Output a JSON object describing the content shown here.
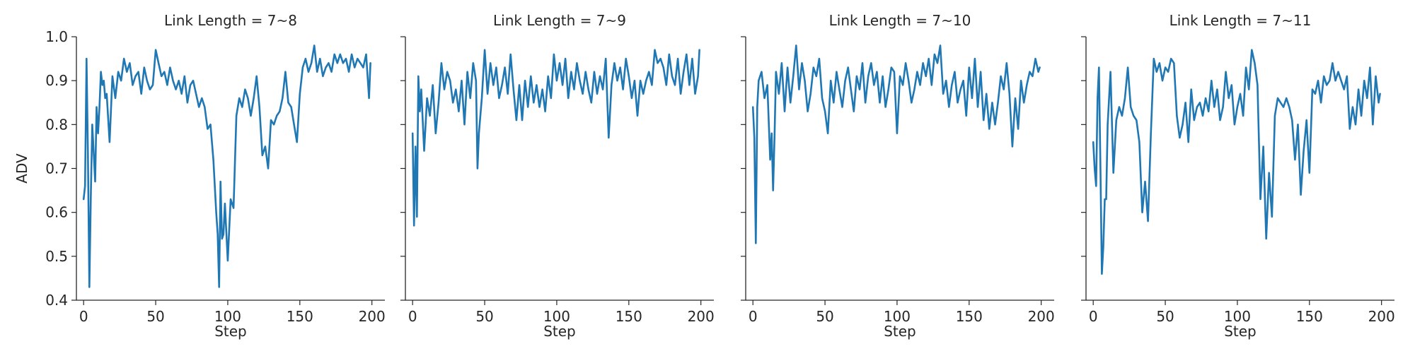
{
  "chart_data": [
    {
      "type": "line",
      "title": "Link Length = 7~8",
      "xlabel": "Step",
      "ylabel": "ADV",
      "xlim": [
        -5,
        209
      ],
      "ylim": [
        0.4,
        1.0
      ],
      "xticks": [
        "0",
        "50",
        "100",
        "150",
        "200"
      ],
      "yticks": [
        "0.4",
        "0.5",
        "0.6",
        "0.7",
        "0.8",
        "0.9",
        "1.0"
      ],
      "grid": false,
      "series_color": "#1f77b4",
      "series": [
        {
          "x": [
            0,
            1,
            2,
            3,
            4,
            5,
            6,
            8,
            9,
            10,
            11,
            12,
            13,
            14,
            15,
            16,
            18,
            20,
            22,
            24,
            26,
            28,
            30,
            32,
            34,
            36,
            38,
            40,
            42,
            44,
            46,
            48,
            50,
            52,
            54,
            56,
            58,
            60,
            62,
            64,
            66,
            68,
            70,
            72,
            74,
            76,
            78,
            80,
            82,
            84,
            86,
            88,
            90,
            92,
            93,
            94,
            95,
            96,
            97,
            98,
            100,
            102,
            104,
            106,
            108,
            110,
            112,
            114,
            116,
            118,
            120,
            122,
            124,
            126,
            128,
            130,
            132,
            134,
            136,
            138,
            140,
            142,
            144,
            146,
            148,
            150,
            152,
            154,
            156,
            158,
            160,
            162,
            164,
            166,
            168,
            170,
            172,
            174,
            176,
            178,
            180,
            182,
            184,
            186,
            188,
            190,
            192,
            194,
            196,
            198,
            199
          ],
          "y": [
            0.63,
            0.66,
            0.95,
            0.73,
            0.43,
            0.64,
            0.8,
            0.67,
            0.84,
            0.78,
            0.84,
            0.92,
            0.89,
            0.9,
            0.86,
            0.87,
            0.76,
            0.91,
            0.86,
            0.92,
            0.9,
            0.95,
            0.92,
            0.94,
            0.89,
            0.91,
            0.92,
            0.87,
            0.93,
            0.9,
            0.88,
            0.89,
            0.97,
            0.94,
            0.91,
            0.92,
            0.89,
            0.93,
            0.9,
            0.88,
            0.9,
            0.87,
            0.91,
            0.85,
            0.89,
            0.9,
            0.87,
            0.84,
            0.86,
            0.84,
            0.79,
            0.8,
            0.72,
            0.6,
            0.55,
            0.43,
            0.67,
            0.54,
            0.55,
            0.62,
            0.49,
            0.63,
            0.61,
            0.82,
            0.86,
            0.84,
            0.88,
            0.86,
            0.82,
            0.86,
            0.91,
            0.84,
            0.73,
            0.75,
            0.7,
            0.81,
            0.8,
            0.82,
            0.83,
            0.86,
            0.92,
            0.85,
            0.84,
            0.8,
            0.76,
            0.87,
            0.93,
            0.95,
            0.92,
            0.94,
            0.98,
            0.92,
            0.95,
            0.91,
            0.93,
            0.94,
            0.92,
            0.96,
            0.94,
            0.96,
            0.94,
            0.95,
            0.92,
            0.96,
            0.93,
            0.95,
            0.94,
            0.93,
            0.96,
            0.86,
            0.94
          ]
        }
      ]
    },
    {
      "type": "line",
      "title": "Link Length = 7~9",
      "xlabel": "Step",
      "ylabel": "",
      "xlim": [
        -5,
        209
      ],
      "ylim": [
        0.4,
        1.0
      ],
      "xticks": [
        "0",
        "50",
        "100",
        "150",
        "200"
      ],
      "yticks": [],
      "grid": false,
      "series_color": "#1f77b4",
      "series": [
        {
          "x": [
            0,
            1,
            2,
            3,
            4,
            5,
            6,
            8,
            10,
            12,
            14,
            16,
            18,
            20,
            22,
            24,
            26,
            28,
            30,
            32,
            34,
            36,
            38,
            40,
            42,
            44,
            45,
            46,
            48,
            50,
            52,
            54,
            56,
            58,
            60,
            62,
            64,
            66,
            68,
            70,
            72,
            74,
            76,
            78,
            80,
            82,
            84,
            86,
            88,
            90,
            92,
            94,
            96,
            98,
            100,
            102,
            104,
            106,
            108,
            110,
            112,
            114,
            116,
            118,
            120,
            122,
            124,
            126,
            128,
            130,
            132,
            134,
            136,
            138,
            140,
            142,
            144,
            146,
            148,
            150,
            152,
            154,
            156,
            158,
            160,
            162,
            164,
            166,
            168,
            170,
            172,
            174,
            176,
            178,
            180,
            182,
            184,
            186,
            188,
            190,
            192,
            194,
            196,
            198,
            199
          ],
          "y": [
            0.78,
            0.57,
            0.75,
            0.59,
            0.91,
            0.83,
            0.88,
            0.74,
            0.86,
            0.82,
            0.89,
            0.78,
            0.85,
            0.94,
            0.88,
            0.92,
            0.9,
            0.85,
            0.88,
            0.83,
            0.9,
            0.8,
            0.92,
            0.86,
            0.94,
            0.9,
            0.7,
            0.78,
            0.86,
            0.97,
            0.87,
            0.94,
            0.89,
            0.93,
            0.86,
            0.89,
            0.93,
            0.87,
            0.96,
            0.88,
            0.81,
            0.89,
            0.81,
            0.9,
            0.84,
            0.91,
            0.85,
            0.89,
            0.84,
            0.88,
            0.83,
            0.91,
            0.86,
            0.96,
            0.9,
            0.94,
            0.89,
            0.95,
            0.86,
            0.92,
            0.88,
            0.94,
            0.9,
            0.87,
            0.92,
            0.88,
            0.85,
            0.92,
            0.87,
            0.91,
            0.88,
            0.95,
            0.77,
            0.89,
            0.94,
            0.9,
            0.93,
            0.88,
            0.95,
            0.91,
            0.86,
            0.9,
            0.82,
            0.9,
            0.87,
            0.9,
            0.92,
            0.89,
            0.97,
            0.94,
            0.95,
            0.93,
            0.89,
            0.96,
            0.91,
            0.89,
            0.95,
            0.87,
            0.92,
            0.96,
            0.89,
            0.95,
            0.87,
            0.91,
            0.97
          ]
        }
      ]
    },
    {
      "type": "line",
      "title": "Link Length = 7~10",
      "xlabel": "Step",
      "ylabel": "",
      "xlim": [
        -5,
        209
      ],
      "ylim": [
        0.4,
        1.0
      ],
      "xticks": [
        "0",
        "50",
        "100",
        "150",
        "200"
      ],
      "yticks": [],
      "grid": false,
      "series_color": "#1f77b4",
      "series": [
        {
          "x": [
            0,
            1,
            2,
            3,
            4,
            6,
            8,
            10,
            12,
            13,
            14,
            15,
            16,
            18,
            20,
            22,
            24,
            26,
            28,
            30,
            32,
            34,
            36,
            38,
            40,
            42,
            44,
            46,
            48,
            50,
            52,
            54,
            56,
            58,
            60,
            62,
            64,
            66,
            68,
            70,
            72,
            74,
            76,
            78,
            80,
            82,
            84,
            86,
            88,
            90,
            92,
            94,
            96,
            98,
            100,
            102,
            104,
            106,
            108,
            110,
            112,
            114,
            116,
            118,
            120,
            122,
            124,
            126,
            128,
            130,
            132,
            134,
            136,
            138,
            140,
            142,
            144,
            146,
            148,
            150,
            152,
            154,
            156,
            158,
            160,
            162,
            164,
            166,
            168,
            170,
            172,
            174,
            176,
            178,
            180,
            182,
            184,
            186,
            188,
            190,
            192,
            194,
            196,
            198,
            199
          ],
          "y": [
            0.84,
            0.77,
            0.53,
            0.84,
            0.9,
            0.92,
            0.86,
            0.89,
            0.72,
            0.78,
            0.65,
            0.77,
            0.92,
            0.87,
            0.94,
            0.83,
            0.93,
            0.85,
            0.91,
            0.98,
            0.88,
            0.94,
            0.9,
            0.83,
            0.87,
            0.93,
            0.91,
            0.95,
            0.86,
            0.83,
            0.78,
            0.9,
            0.85,
            0.92,
            0.88,
            0.84,
            0.9,
            0.93,
            0.88,
            0.83,
            0.91,
            0.88,
            0.94,
            0.85,
            0.91,
            0.94,
            0.89,
            0.92,
            0.85,
            0.91,
            0.84,
            0.88,
            0.93,
            0.92,
            0.78,
            0.91,
            0.89,
            0.94,
            0.9,
            0.85,
            0.88,
            0.92,
            0.89,
            0.94,
            0.91,
            0.95,
            0.89,
            0.96,
            0.94,
            0.98,
            0.87,
            0.9,
            0.84,
            0.89,
            0.92,
            0.85,
            0.88,
            0.9,
            0.82,
            0.93,
            0.86,
            0.95,
            0.84,
            0.92,
            0.81,
            0.87,
            0.79,
            0.85,
            0.8,
            0.85,
            0.91,
            0.88,
            0.94,
            0.87,
            0.75,
            0.86,
            0.79,
            0.9,
            0.85,
            0.89,
            0.92,
            0.91,
            0.95,
            0.92,
            0.93
          ]
        }
      ]
    },
    {
      "type": "line",
      "title": "Link Length = 7~11",
      "xlabel": "Step",
      "ylabel": "",
      "xlim": [
        -5,
        209
      ],
      "ylim": [
        0.4,
        1.0
      ],
      "xticks": [
        "0",
        "50",
        "100",
        "150",
        "200"
      ],
      "yticks": [],
      "grid": false,
      "series_color": "#1f77b4",
      "series": [
        {
          "x": [
            0,
            1,
            2,
            3,
            4,
            5,
            6,
            7,
            8,
            9,
            10,
            12,
            14,
            16,
            18,
            20,
            22,
            24,
            26,
            28,
            30,
            32,
            34,
            36,
            38,
            40,
            42,
            44,
            46,
            48,
            50,
            52,
            54,
            56,
            58,
            60,
            62,
            64,
            66,
            68,
            70,
            72,
            74,
            76,
            78,
            80,
            82,
            84,
            86,
            88,
            90,
            92,
            94,
            96,
            98,
            100,
            102,
            104,
            106,
            108,
            110,
            112,
            114,
            116,
            118,
            120,
            122,
            124,
            126,
            128,
            130,
            132,
            134,
            136,
            138,
            140,
            142,
            144,
            146,
            148,
            150,
            152,
            154,
            156,
            158,
            160,
            162,
            164,
            166,
            168,
            170,
            172,
            174,
            176,
            178,
            180,
            182,
            184,
            186,
            188,
            190,
            192,
            194,
            196,
            198,
            199
          ],
          "y": [
            0.76,
            0.7,
            0.66,
            0.86,
            0.93,
            0.7,
            0.46,
            0.52,
            0.63,
            0.63,
            0.8,
            0.92,
            0.69,
            0.81,
            0.84,
            0.82,
            0.86,
            0.93,
            0.84,
            0.82,
            0.81,
            0.76,
            0.6,
            0.67,
            0.58,
            0.78,
            0.95,
            0.92,
            0.94,
            0.9,
            0.93,
            0.92,
            0.95,
            0.94,
            0.82,
            0.77,
            0.8,
            0.85,
            0.76,
            0.88,
            0.81,
            0.84,
            0.85,
            0.82,
            0.86,
            0.83,
            0.9,
            0.84,
            0.88,
            0.81,
            0.84,
            0.92,
            0.86,
            0.89,
            0.8,
            0.84,
            0.87,
            0.82,
            0.93,
            0.88,
            0.97,
            0.94,
            0.89,
            0.63,
            0.75,
            0.54,
            0.69,
            0.59,
            0.82,
            0.86,
            0.85,
            0.84,
            0.86,
            0.84,
            0.81,
            0.72,
            0.8,
            0.64,
            0.74,
            0.81,
            0.69,
            0.88,
            0.87,
            0.9,
            0.85,
            0.91,
            0.89,
            0.9,
            0.94,
            0.9,
            0.92,
            0.9,
            0.88,
            0.91,
            0.79,
            0.84,
            0.8,
            0.88,
            0.82,
            0.9,
            0.86,
            0.93,
            0.8,
            0.91,
            0.85,
            0.87
          ]
        }
      ]
    }
  ]
}
